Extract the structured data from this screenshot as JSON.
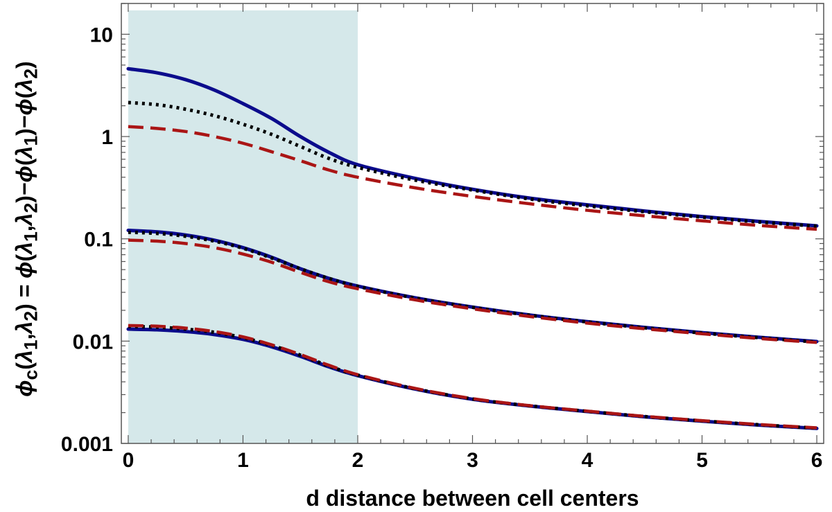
{
  "chart_data": {
    "type": "line",
    "xlabel": "d distance between cell centers",
    "ylabel_parts": {
      "phi": "ϕ",
      "sub_c": "c",
      "lambda": "λ",
      "one": "1",
      "two": "2",
      "open": "(",
      "comma": ",",
      "close": ")",
      "eq": " = ",
      "minus": "−"
    },
    "x_ticks": [
      "0",
      "1",
      "2",
      "3",
      "4",
      "5",
      "6"
    ],
    "y_ticks": [
      "0.001",
      "0.01",
      "0.1",
      "1",
      "10"
    ],
    "xlim": [
      -0.06,
      6.06
    ],
    "ylim": [
      0.001,
      20
    ],
    "y_scale": "log",
    "shaded_region": {
      "x": [
        0,
        2
      ],
      "color": "#d5e8ea"
    },
    "series": [
      {
        "group": 1,
        "style": "solid",
        "color": "#0b0b8c",
        "x": [
          0,
          0.25,
          0.5,
          0.75,
          1.0,
          1.25,
          1.5,
          1.75,
          2.0,
          2.5,
          3,
          3.5,
          4,
          4.5,
          5,
          5.5,
          6
        ],
        "y": [
          4.6,
          4.2,
          3.6,
          2.85,
          2.1,
          1.5,
          1.0,
          0.7,
          0.53,
          0.39,
          0.305,
          0.25,
          0.215,
          0.187,
          0.165,
          0.148,
          0.134
        ]
      },
      {
        "group": 1,
        "style": "dotted",
        "color": "#000000",
        "x": [
          0,
          0.25,
          0.5,
          0.75,
          1.0,
          1.25,
          1.5,
          1.75,
          2.0,
          2.5,
          3,
          3.5,
          4,
          4.5,
          5,
          5.5,
          6
        ],
        "y": [
          2.15,
          2.05,
          1.85,
          1.6,
          1.32,
          1.05,
          0.8,
          0.61,
          0.5,
          0.375,
          0.3,
          0.245,
          0.21,
          0.184,
          0.163,
          0.146,
          0.133
        ]
      },
      {
        "group": 1,
        "style": "dashed",
        "color": "#aa1515",
        "x": [
          0,
          0.25,
          0.5,
          0.75,
          1.0,
          1.25,
          1.5,
          1.75,
          2.0,
          2.5,
          3,
          3.5,
          4,
          4.5,
          5,
          5.5,
          6
        ],
        "y": [
          1.25,
          1.2,
          1.12,
          1.0,
          0.86,
          0.71,
          0.58,
          0.47,
          0.4,
          0.315,
          0.26,
          0.22,
          0.19,
          0.168,
          0.15,
          0.135,
          0.124
        ]
      },
      {
        "group": 2,
        "style": "solid",
        "color": "#0b0b8c",
        "x": [
          0,
          0.25,
          0.5,
          0.75,
          1.0,
          1.25,
          1.5,
          1.75,
          2.0,
          2.5,
          3,
          3.5,
          4,
          4.5,
          5,
          5.5,
          6
        ],
        "y": [
          0.121,
          0.117,
          0.109,
          0.097,
          0.082,
          0.066,
          0.051,
          0.041,
          0.0345,
          0.0265,
          0.0215,
          0.018,
          0.0155,
          0.0136,
          0.0121,
          0.0109,
          0.0099
        ]
      },
      {
        "group": 2,
        "style": "dotted",
        "color": "#000000",
        "x": [
          0,
          0.25,
          0.5,
          0.75,
          1.0,
          1.25,
          1.5,
          1.75,
          2.0,
          2.5,
          3,
          3.5,
          4,
          4.5,
          5,
          5.5,
          6
        ],
        "y": [
          0.116,
          0.113,
          0.106,
          0.095,
          0.081,
          0.065,
          0.051,
          0.041,
          0.0343,
          0.0264,
          0.0214,
          0.0179,
          0.0154,
          0.0135,
          0.012,
          0.0108,
          0.0098
        ]
      },
      {
        "group": 2,
        "style": "dashed",
        "color": "#aa1515",
        "x": [
          0,
          0.25,
          0.5,
          0.75,
          1.0,
          1.25,
          1.5,
          1.75,
          2.0,
          2.5,
          3,
          3.5,
          4,
          4.5,
          5,
          5.5,
          6
        ],
        "y": [
          0.097,
          0.095,
          0.09,
          0.082,
          0.071,
          0.059,
          0.047,
          0.038,
          0.0325,
          0.0253,
          0.0207,
          0.0174,
          0.015,
          0.0132,
          0.0118,
          0.0106,
          0.0097
        ]
      },
      {
        "group": 3,
        "style": "solid",
        "color": "#0b0b8c",
        "x": [
          0,
          0.25,
          0.5,
          0.75,
          1.0,
          1.25,
          1.5,
          1.75,
          2.0,
          2.5,
          3,
          3.5,
          4,
          4.5,
          5,
          5.5,
          6
        ],
        "y": [
          0.0131,
          0.0129,
          0.0124,
          0.0116,
          0.0104,
          0.0088,
          0.0071,
          0.0056,
          0.0046,
          0.0034,
          0.0027,
          0.00232,
          0.00205,
          0.00182,
          0.00165,
          0.00151,
          0.0014
        ]
      },
      {
        "group": 3,
        "style": "dotted",
        "color": "#000000",
        "x": [
          0,
          0.25,
          0.5,
          0.75,
          1.0,
          1.25,
          1.5,
          1.75,
          2.0,
          2.5,
          3,
          3.5,
          4,
          4.5,
          5,
          5.5,
          6
        ],
        "y": [
          0.0139,
          0.0137,
          0.0131,
          0.0122,
          0.0108,
          0.0091,
          0.0073,
          0.0057,
          0.00465,
          0.00342,
          0.00272,
          0.00233,
          0.00206,
          0.00183,
          0.00166,
          0.00152,
          0.00141
        ]
      },
      {
        "group": 3,
        "style": "dashed",
        "color": "#aa1515",
        "x": [
          0,
          0.25,
          0.5,
          0.75,
          1.0,
          1.25,
          1.5,
          1.75,
          2.0,
          2.5,
          3,
          3.5,
          4,
          4.5,
          5,
          5.5,
          6
        ],
        "y": [
          0.0142,
          0.014,
          0.0134,
          0.0124,
          0.011,
          0.0092,
          0.0074,
          0.0058,
          0.0047,
          0.00345,
          0.00274,
          0.00234,
          0.00207,
          0.00184,
          0.00167,
          0.00153,
          0.00142
        ]
      }
    ]
  }
}
